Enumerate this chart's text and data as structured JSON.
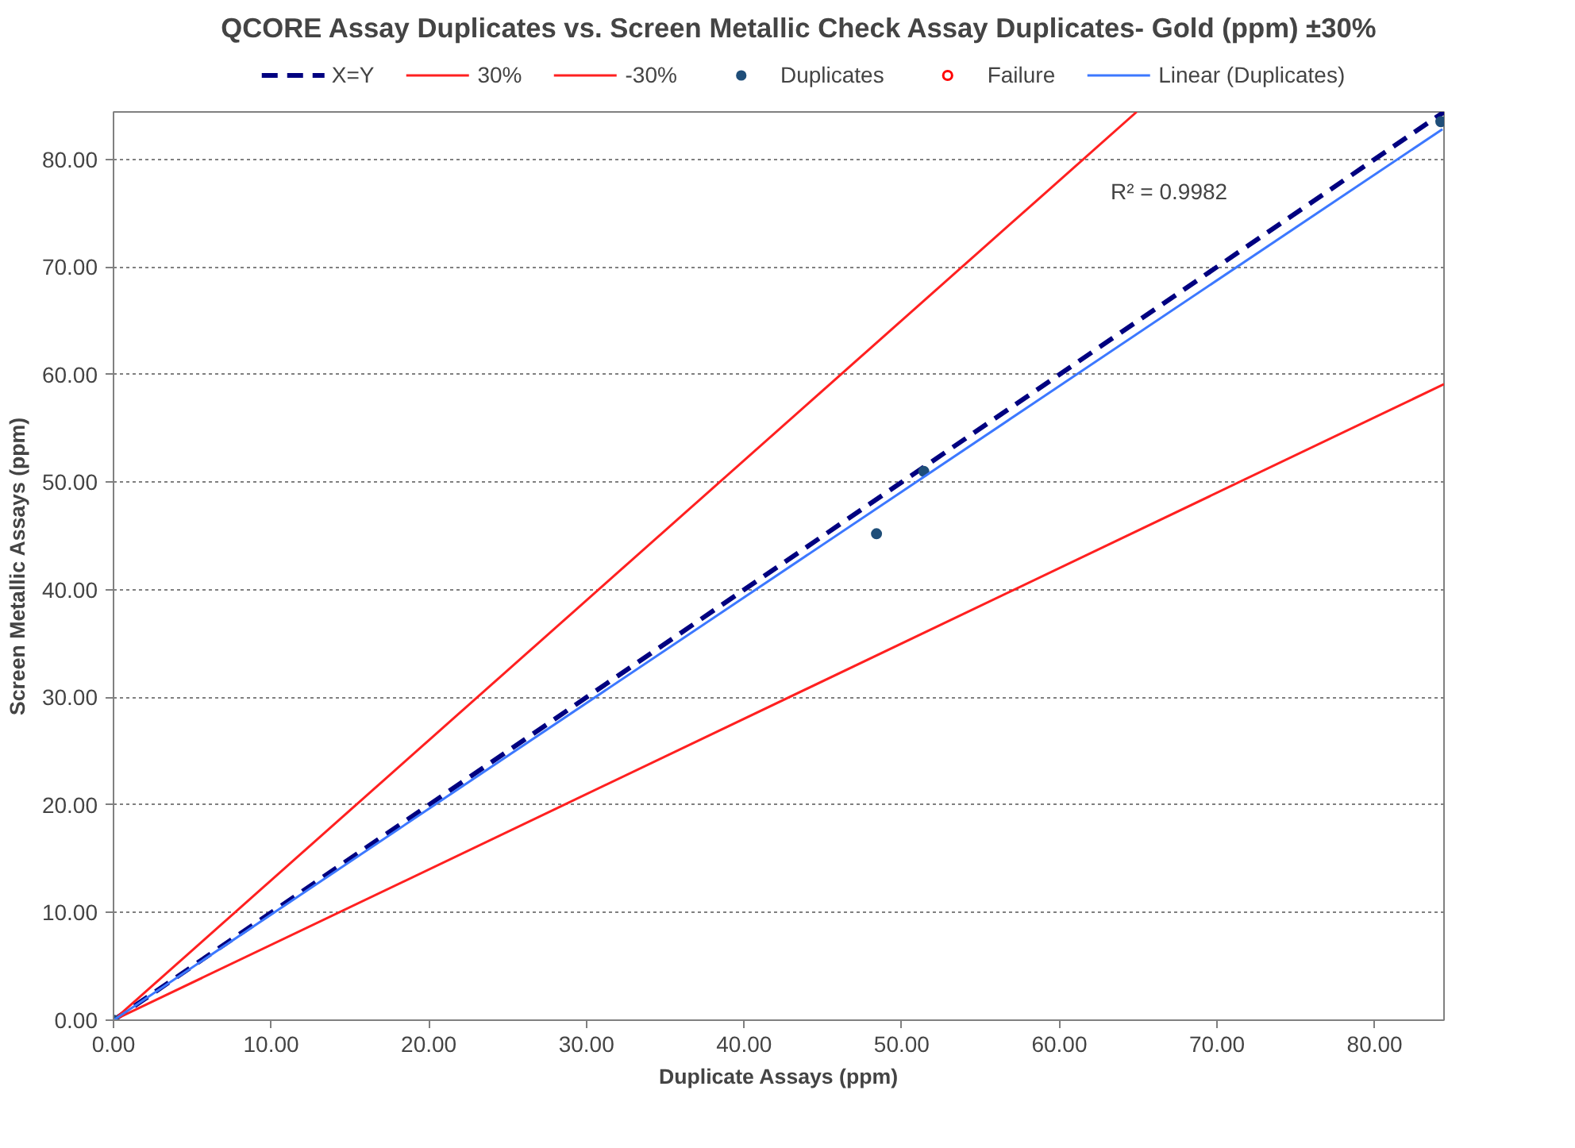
{
  "chart_data": {
    "type": "scatter",
    "title": "QCORE Assay Duplicates vs. Screen Metallic Check Assay Duplicates- Gold (ppm)  ±30%",
    "xlabel": "Duplicate Assays (ppm)",
    "ylabel": "Screen Metallic Assays (ppm)",
    "xlim": [
      0,
      84.4
    ],
    "ylim": [
      0,
      84.4
    ],
    "xticks": [
      {
        "value": 0,
        "label": "0.00"
      },
      {
        "value": 10,
        "label": "10.00"
      },
      {
        "value": 20,
        "label": "20.00"
      },
      {
        "value": 30,
        "label": "30.00"
      },
      {
        "value": 40,
        "label": "40.00"
      },
      {
        "value": 50,
        "label": "50.00"
      },
      {
        "value": 60,
        "label": "60.00"
      },
      {
        "value": 70,
        "label": "70.00"
      },
      {
        "value": 80,
        "label": "80.00"
      }
    ],
    "yticks": [
      {
        "value": 0,
        "label": "0.00"
      },
      {
        "value": 10,
        "label": "10.00"
      },
      {
        "value": 20,
        "label": "20.00"
      },
      {
        "value": 30,
        "label": "30.00"
      },
      {
        "value": 40,
        "label": "40.00"
      },
      {
        "value": 50,
        "label": "50.00"
      },
      {
        "value": 60,
        "label": "60.00"
      },
      {
        "value": 70,
        "label": "70.00"
      },
      {
        "value": 80,
        "label": "80.00"
      }
    ],
    "grid": "y",
    "legend": "top",
    "series": [
      {
        "name": "X=Y",
        "type": "line",
        "line_style": "dashed",
        "marker": "none",
        "color": "#000080",
        "x": [
          0,
          84.4
        ],
        "values": [
          0,
          84.4
        ]
      },
      {
        "name": "30%",
        "type": "line",
        "line_style": "solid",
        "marker": "none",
        "color": "#ff2020",
        "x": [
          0,
          64.9
        ],
        "values": [
          0,
          84.4
        ]
      },
      {
        "name": "-30%",
        "type": "line",
        "line_style": "solid",
        "marker": "none",
        "color": "#ff2020",
        "x": [
          0,
          84.4
        ],
        "values": [
          0,
          59.1
        ]
      },
      {
        "name": "Duplicates",
        "marker": "circle",
        "color": "#1f4e79",
        "x": [
          0,
          48.4,
          51.4,
          84.2
        ],
        "values": [
          0,
          45.2,
          51.0,
          83.5
        ]
      },
      {
        "name": "Failure",
        "marker": "circle",
        "color": "#ff0000"
      },
      {
        "name": "Linear (Duplicates)",
        "type": "line",
        "line_style": "solid",
        "marker": "none",
        "color": "#3c78ff",
        "x": [
          0,
          84.3
        ],
        "values": [
          0,
          82.8
        ]
      }
    ],
    "annotations": [
      "R² = 0.9982"
    ]
  }
}
